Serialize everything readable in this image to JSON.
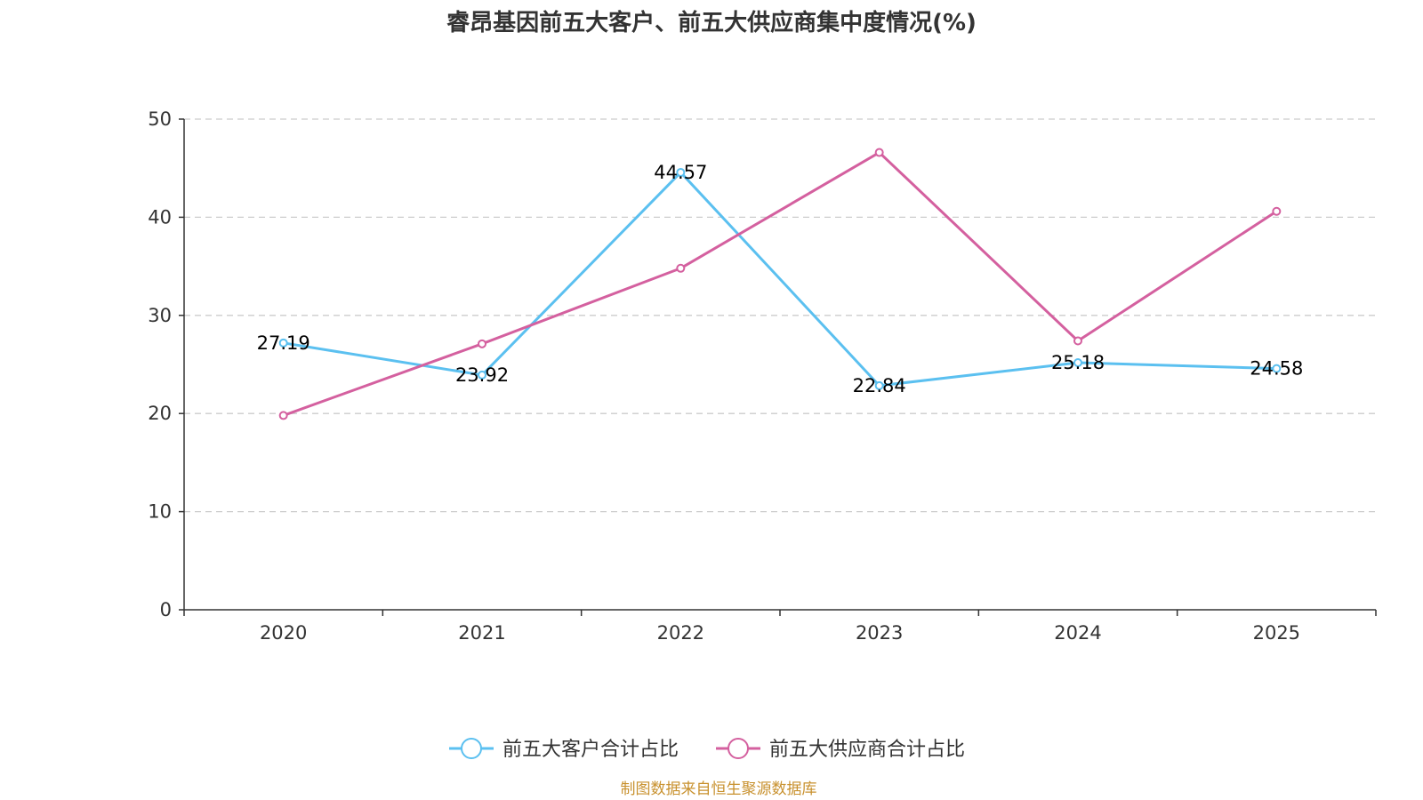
{
  "chart_data": {
    "type": "line",
    "title": "睿昂基因前五大客户、前五大供应商集中度情况(%)",
    "categories": [
      "2020",
      "2021",
      "2022",
      "2023",
      "2024",
      "2025"
    ],
    "ylim": [
      0,
      50
    ],
    "yticks": [
      0,
      10,
      20,
      30,
      40,
      50
    ],
    "grid": true,
    "legend_position": "bottom",
    "series": [
      {
        "name": "前五大客户合计占比",
        "color": "#5bc0f0",
        "values": [
          27.19,
          23.92,
          44.57,
          22.84,
          25.18,
          24.58
        ],
        "labels": [
          "27.19",
          "23.92",
          "44.57",
          "22.84",
          "25.18",
          "24.58"
        ]
      },
      {
        "name": "前五大供应商合计占比",
        "color": "#d4609f",
        "values": [
          19.8,
          27.1,
          34.8,
          46.6,
          27.4,
          40.6
        ],
        "labels": []
      }
    ]
  },
  "source_note": "制图数据来自恒生聚源数据库"
}
